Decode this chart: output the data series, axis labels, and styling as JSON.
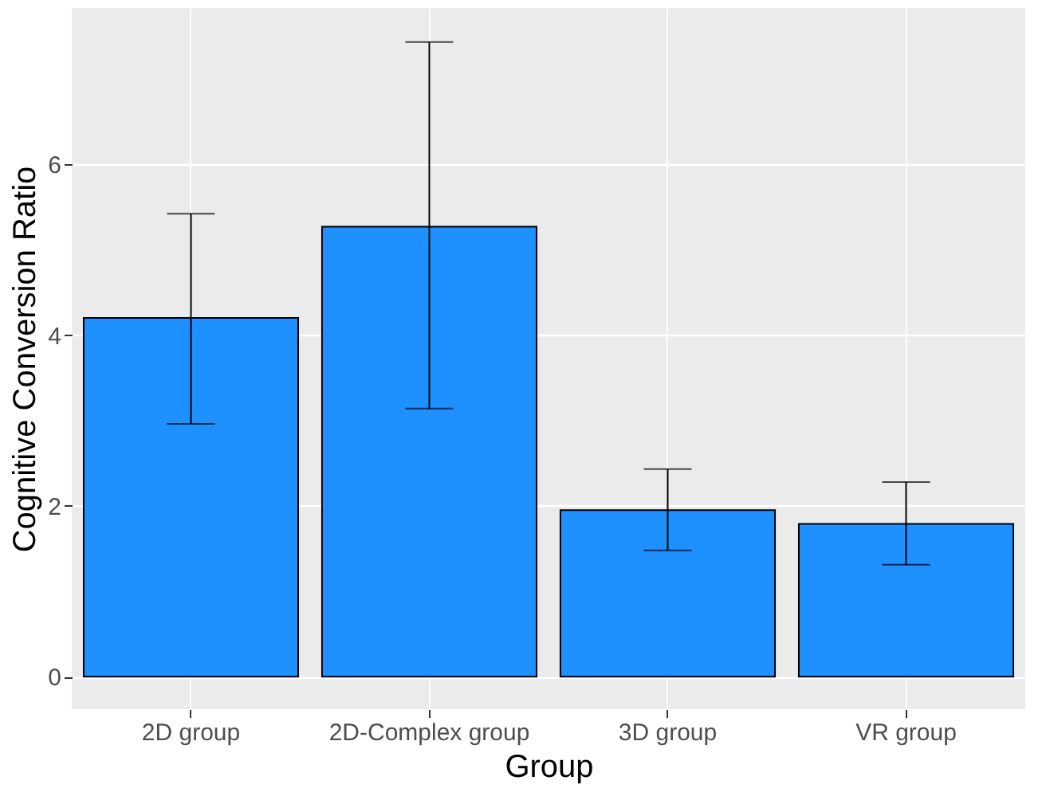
{
  "chart_data": {
    "type": "bar",
    "xlabel": "Group",
    "ylabel": "Cognitive Conversion Ratio",
    "categories": [
      "2D group",
      "2D-Complex group",
      "3D group",
      "VR group"
    ],
    "values": [
      4.2,
      5.27,
      1.95,
      1.79
    ],
    "errors": [
      [
        2.96,
        5.42
      ],
      [
        3.14,
        7.43
      ],
      [
        1.48,
        2.43
      ],
      [
        1.31,
        2.28
      ]
    ],
    "color": "#1e90ff",
    "ylim": [
      -0.38,
      7.83
    ],
    "yticks": [
      0,
      2,
      4,
      6
    ],
    "grid": true
  }
}
